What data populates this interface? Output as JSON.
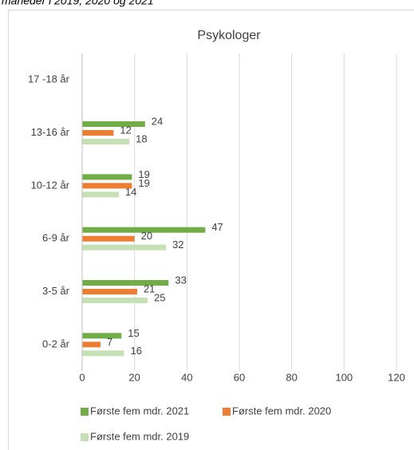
{
  "caption": "måneder i 2019, 2020 og 2021",
  "chart_data": {
    "type": "barh",
    "title": "Psykologer",
    "categories": [
      "17 -18 år",
      "13-16 år",
      "10-12 år",
      "6-9 år",
      "3-5 år",
      "0-2 år"
    ],
    "series": [
      {
        "name": "Første fem mdr. 2021",
        "color": "#70ad47",
        "values": [
          null,
          24,
          19,
          47,
          33,
          15
        ]
      },
      {
        "name": "Første fem mdr. 2020",
        "color": "#ed7d31",
        "values": [
          null,
          12,
          19,
          20,
          21,
          7
        ]
      },
      {
        "name": "Første fem mdr. 2019",
        "color": "#c5e0b4",
        "values": [
          null,
          18,
          14,
          32,
          25,
          16
        ]
      }
    ],
    "xlim": [
      0,
      120
    ],
    "xticks": [
      0,
      20,
      40,
      60,
      80,
      100,
      120
    ],
    "grid": true,
    "legend": "bottom"
  }
}
